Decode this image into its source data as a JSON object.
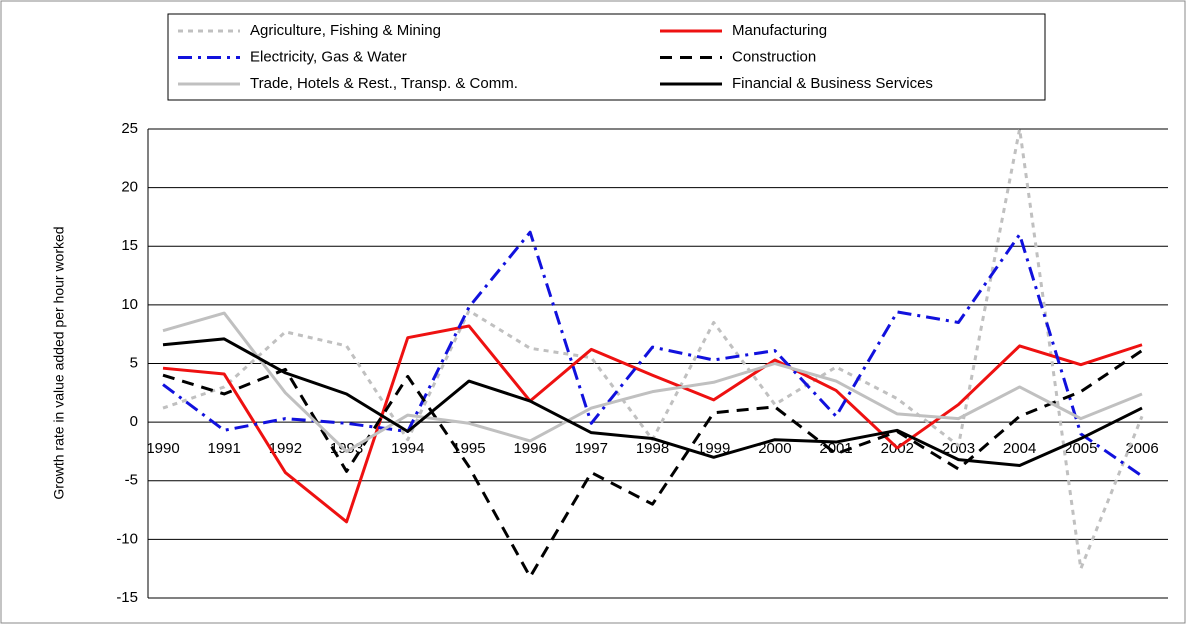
{
  "chart_data": {
    "type": "line",
    "y_label": "Growth rate in value added per hour worked",
    "categories": [
      "1990",
      "1991",
      "1992",
      "1993",
      "1994",
      "1995",
      "1996",
      "1997",
      "1998",
      "1999",
      "2000",
      "2001",
      "2002",
      "2003",
      "2004",
      "2005",
      "2006"
    ],
    "series": [
      {
        "name": "Agriculture, Fishing & Mining",
        "color": "#c0c0c0",
        "dash": "dotted",
        "values": [
          1.2,
          3,
          7.7,
          6.5,
          -1.5,
          9.5,
          6.3,
          5.5,
          -1.5,
          8.5,
          1.5,
          4.7,
          2,
          -2,
          25,
          -12.5,
          0.5
        ]
      },
      {
        "name": "Manufacturing",
        "color": "#ee1111",
        "dash": "solid",
        "values": [
          4.6,
          4.1,
          -4.3,
          -8.5,
          7.2,
          8.2,
          1.8,
          6.2,
          4.0,
          1.9,
          5.3,
          2.7,
          -2.2,
          1.5,
          6.5,
          4.9,
          6.6
        ]
      },
      {
        "name": "Electricity, Gas & Water",
        "color": "#1111dd",
        "dash": "dashdot",
        "values": [
          3.2,
          -0.7,
          0.3,
          -0.1,
          -0.8,
          9.8,
          16.2,
          -0.1,
          6.4,
          5.3,
          6.1,
          0.5,
          9.4,
          8.5,
          16,
          -1,
          -4.6
        ]
      },
      {
        "name": "Construction",
        "color": "#000000",
        "dash": "dashed",
        "values": [
          4,
          2.4,
          4.5,
          -4.2,
          3.9,
          -3.8,
          -13.2,
          -4.3,
          -7,
          0.8,
          1.3,
          -2.7,
          -0.8,
          -4,
          0.5,
          2.6,
          6.1
        ]
      },
      {
        "name": "Trade, Hotels & Rest., Transp. & Comm.",
        "color": "#c0c0c0",
        "dash": "solid",
        "values": [
          7.8,
          9.3,
          2.5,
          -2.5,
          0.6,
          -0.1,
          -1.6,
          1.2,
          2.6,
          3.4,
          5,
          3.5,
          0.7,
          0.3,
          3,
          0.3,
          2.4
        ]
      },
      {
        "name": "Financial & Business Services",
        "color": "#000000",
        "dash": "solid",
        "values": [
          6.6,
          7.1,
          4.2,
          2.4,
          -0.8,
          3.5,
          1.8,
          -0.9,
          -1.4,
          -3,
          -1.5,
          -1.7,
          -0.7,
          -3.2,
          -3.7,
          -1.4,
          1.2
        ]
      }
    ],
    "ylim": [
      -15,
      25
    ],
    "yticks": [
      -15,
      -10,
      -5,
      0,
      5,
      10,
      15,
      20,
      25
    ],
    "grid": true
  }
}
